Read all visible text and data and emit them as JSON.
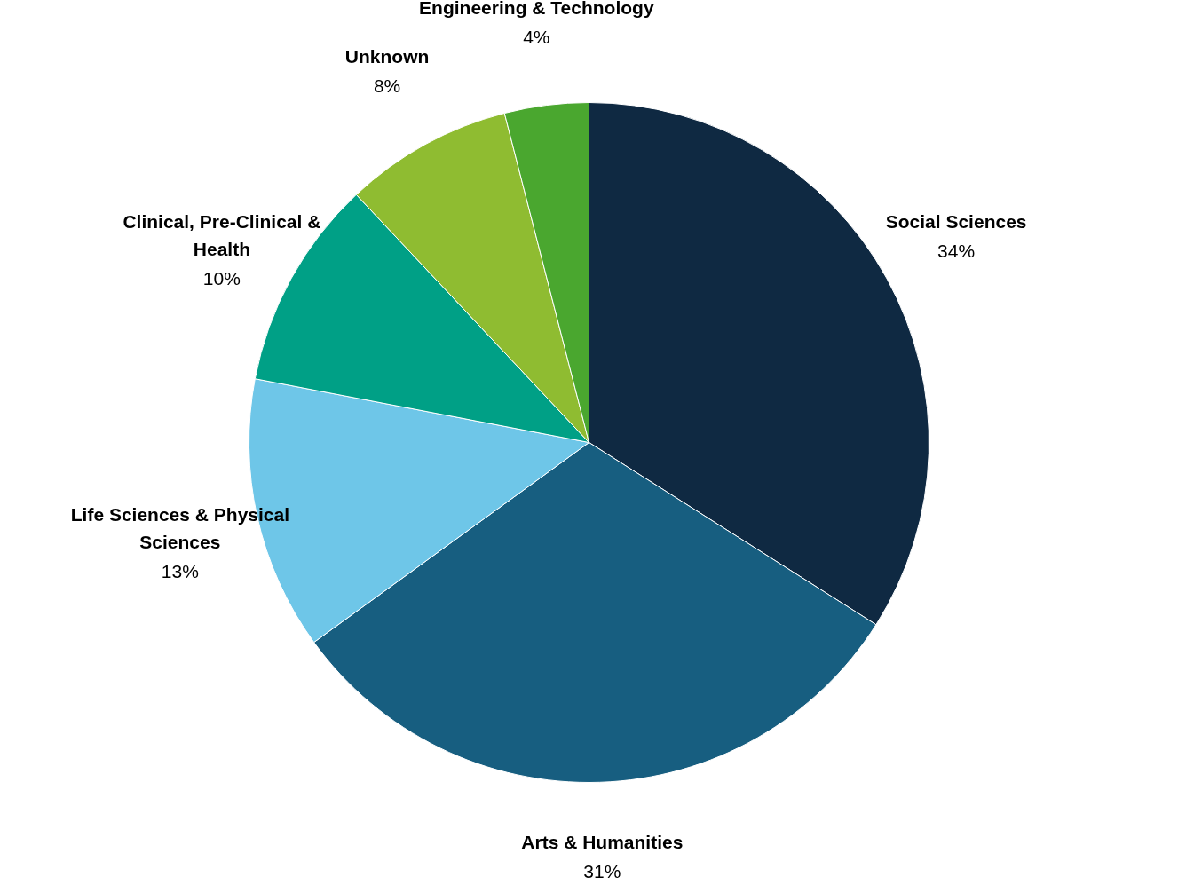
{
  "chart_data": {
    "type": "pie",
    "categories": [
      "Social Sciences",
      "Arts & Humanities",
      "Life Sciences & Physical Sciences",
      "Clinical, Pre-Clinical & Health",
      "Unknown",
      "Engineering & Technology"
    ],
    "values": [
      34,
      31,
      13,
      10,
      8,
      4
    ],
    "value_labels": [
      "34%",
      "31%",
      "13%",
      "10%",
      "8%",
      "4%"
    ],
    "colors": [
      "#0f2942",
      "#175e80",
      "#6ec6e8",
      "#00a086",
      "#8fbc31",
      "#4aa72f"
    ]
  }
}
